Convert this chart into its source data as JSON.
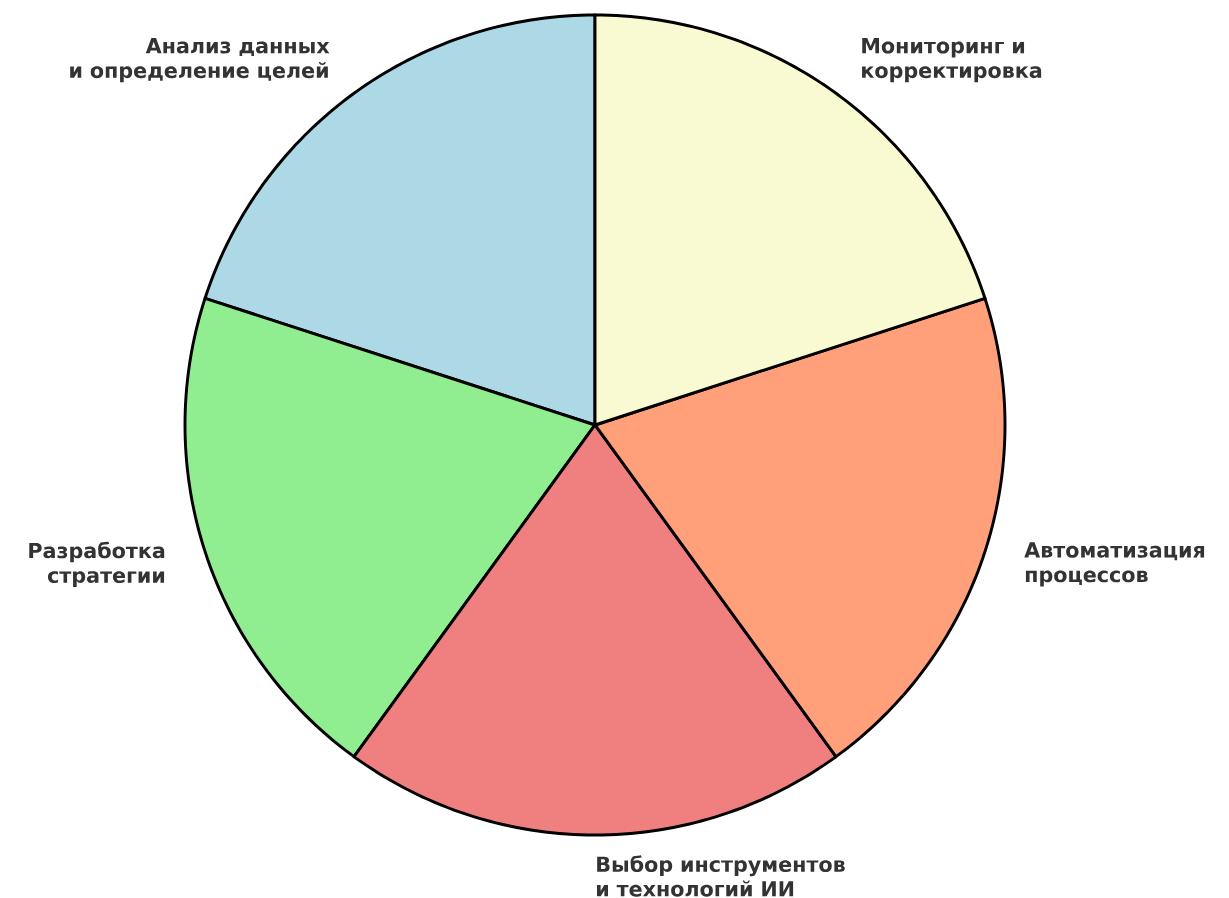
{
  "chart_data": {
    "type": "pie",
    "categories": [
      "Анализ данных\nи определение целей",
      "Разработка\nстратегии",
      "Выбор инструментов\nи технологий ИИ",
      "Автоматизация\nпроцессов",
      "Мониторинг и\nкорректировка"
    ],
    "values": [
      20,
      20,
      20,
      20,
      20
    ],
    "colors": [
      "#add8e6",
      "#90ee90",
      "#f08080",
      "#ffa07a",
      "#fafad2"
    ]
  }
}
